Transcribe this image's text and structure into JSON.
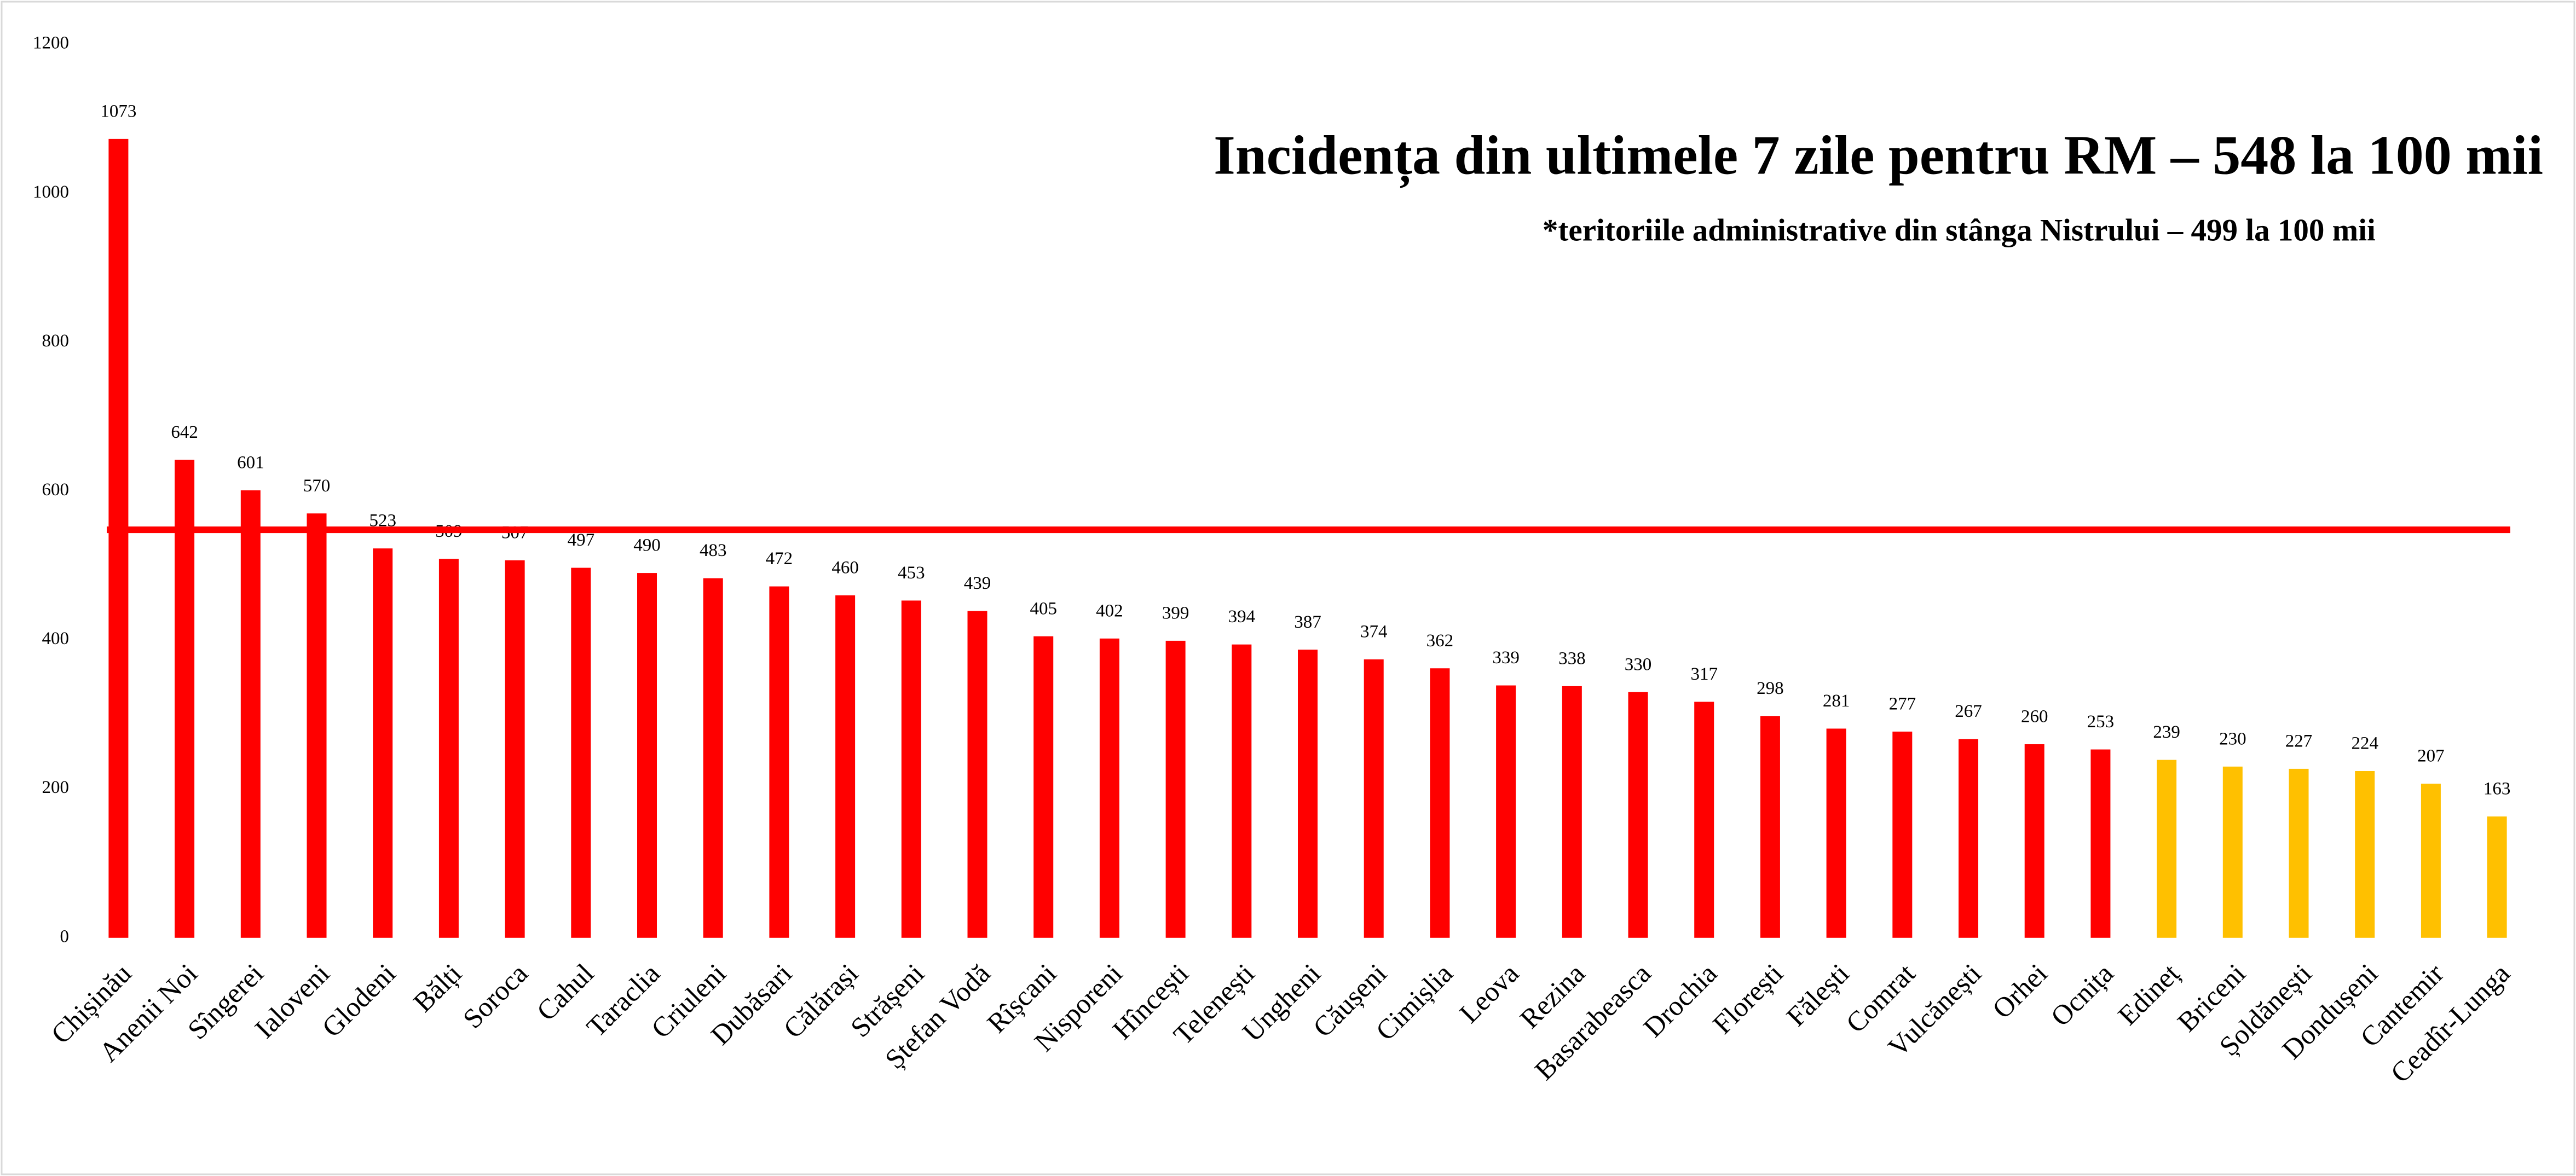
{
  "chart_data": {
    "type": "bar",
    "title": "Incidența din ultimele 7 zile pentru RM – 548 la 100 mii",
    "subtitle": "*teritoriile administrative din stânga Nistrului – 499 la 100 mii",
    "categories": [
      "Chișinău",
      "Anenii Noi",
      "Sîngerei",
      "Ialoveni",
      "Glodeni",
      "Bălți",
      "Soroca",
      "Cahul",
      "Taraclia",
      "Criuleni",
      "Dubăsari",
      "Călărași",
      "Strășeni",
      "Ștefan Vodă",
      "Rîșcani",
      "Nisporeni",
      "Hîncești",
      "Telenești",
      "Ungheni",
      "Căușeni",
      "Cimișlia",
      "Leova",
      "Rezina",
      "Basarabeasca",
      "Drochia",
      "Florești",
      "Fălești",
      "Comrat",
      "Vulcănești",
      "Orhei",
      "Ocnița",
      "Edineț",
      "Briceni",
      "Șoldănești",
      "Dondușeni",
      "Cantemir",
      "Ceadîr-Lunga"
    ],
    "values": [
      1073,
      642,
      601,
      570,
      523,
      509,
      507,
      497,
      490,
      483,
      472,
      460,
      453,
      439,
      405,
      402,
      399,
      394,
      387,
      374,
      362,
      339,
      338,
      330,
      317,
      298,
      281,
      277,
      267,
      260,
      253,
      239,
      230,
      227,
      224,
      207,
      163
    ],
    "colors": [
      "#ff0000",
      "#ff0000",
      "#ff0000",
      "#ff0000",
      "#ff0000",
      "#ff0000",
      "#ff0000",
      "#ff0000",
      "#ff0000",
      "#ff0000",
      "#ff0000",
      "#ff0000",
      "#ff0000",
      "#ff0000",
      "#ff0000",
      "#ff0000",
      "#ff0000",
      "#ff0000",
      "#ff0000",
      "#ff0000",
      "#ff0000",
      "#ff0000",
      "#ff0000",
      "#ff0000",
      "#ff0000",
      "#ff0000",
      "#ff0000",
      "#ff0000",
      "#ff0000",
      "#ff0000",
      "#ff0000",
      "#ffc000",
      "#ffc000",
      "#ffc000",
      "#ffc000",
      "#ffc000",
      "#ffc000"
    ],
    "reference_line": 548,
    "reference_color": "#ff0000",
    "ylim": [
      0,
      1200
    ],
    "yticks": [
      0,
      200,
      400,
      600,
      800,
      1000,
      1200
    ],
    "grid": false
  }
}
